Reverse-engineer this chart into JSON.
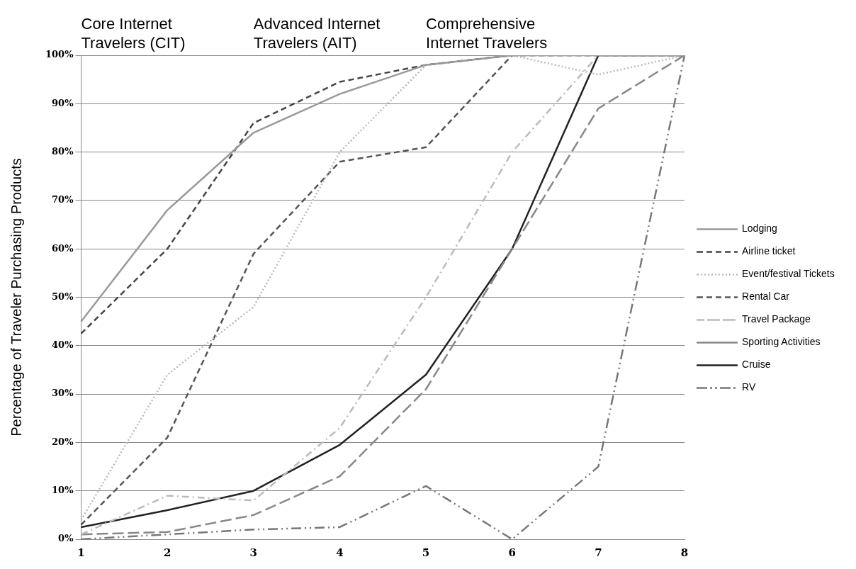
{
  "chart_data": {
    "type": "line",
    "ylabel": "Percentage of Traveler Purchasing Products",
    "categories": [
      "1",
      "2",
      "3",
      "4",
      "5",
      "6",
      "7",
      "8"
    ],
    "ylim": [
      0,
      100
    ],
    "yticks": [
      {
        "value": 0,
        "label": "0%"
      },
      {
        "value": 10,
        "label": "10%"
      },
      {
        "value": 20,
        "label": "20%"
      },
      {
        "value": 30,
        "label": "30%"
      },
      {
        "value": 40,
        "label": "40%"
      },
      {
        "value": 50,
        "label": "50%"
      },
      {
        "value": 60,
        "label": "60%"
      },
      {
        "value": 70,
        "label": "70%"
      },
      {
        "value": 80,
        "label": "80%"
      },
      {
        "value": 90,
        "label": "90%"
      },
      {
        "value": 100,
        "label": "100%"
      }
    ],
    "grid": "y",
    "legend": "right",
    "marker": "none",
    "annotations": [
      "Core Internet Travelers (CIT)",
      "Advanced Internet Travelers (AIT)",
      "Comprehensive Internet Travelers"
    ],
    "series": [
      {
        "name": "Lodging",
        "color": "#999999",
        "line_style": "solid",
        "values": [
          45,
          68,
          84,
          92,
          98,
          100,
          100,
          100
        ]
      },
      {
        "name": "Airline ticket",
        "color": "#444444",
        "line_style": "dashed",
        "values": [
          42.5,
          60,
          86,
          94.5,
          98,
          100,
          100,
          100
        ]
      },
      {
        "name": "Event/festival Tickets",
        "color": "#bbbbbb",
        "line_style": "dotted",
        "values": [
          4,
          34,
          48,
          80,
          98,
          100,
          96,
          100
        ]
      },
      {
        "name": "Rental Car",
        "color": "#555555",
        "line_style": "dashed",
        "values": [
          3,
          21,
          59,
          78,
          81,
          100,
          100,
          100
        ]
      },
      {
        "name": "Travel Package",
        "color": "#bbbbbb",
        "line_style": "dashdot",
        "values": [
          1,
          9,
          8,
          23,
          50,
          80,
          100,
          100
        ]
      },
      {
        "name": "Sporting Activities",
        "color": "#888888",
        "line_style": "longdash",
        "values": [
          1,
          1.5,
          5,
          13,
          31,
          60,
          89,
          100
        ]
      },
      {
        "name": "Cruise",
        "color": "#222222",
        "line_style": "solid",
        "values": [
          2.5,
          6,
          10,
          19.5,
          34,
          60,
          100,
          100
        ]
      },
      {
        "name": "RV",
        "color": "#777777",
        "line_style": "dashdotdot",
        "values": [
          0,
          1,
          2,
          2.5,
          11,
          0,
          15,
          100
        ]
      }
    ]
  }
}
